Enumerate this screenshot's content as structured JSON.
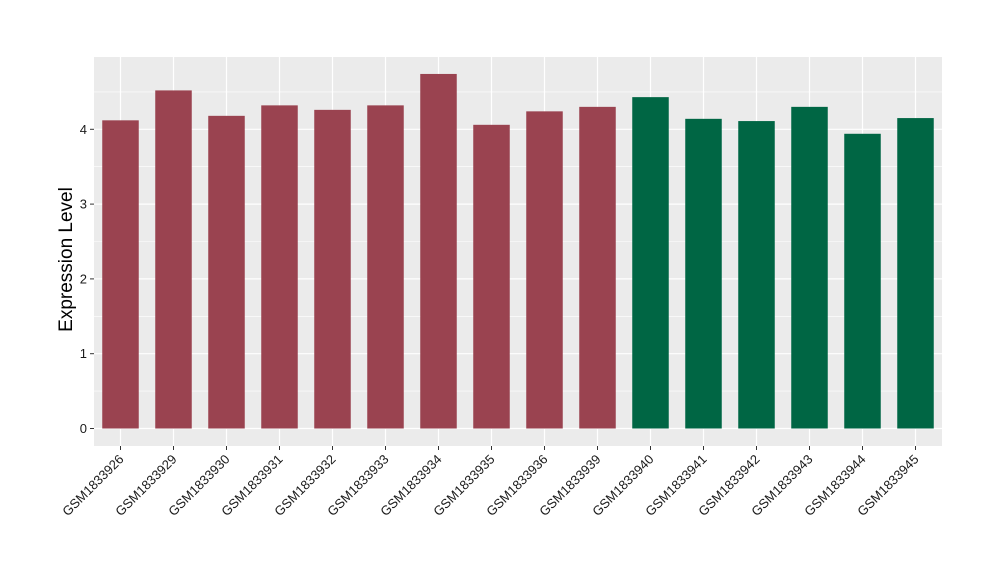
{
  "chart_data": {
    "type": "bar",
    "title": "",
    "xlabel": "",
    "ylabel": "Expression Level",
    "ylim": [
      0,
      5
    ],
    "yticks": [
      0,
      1,
      2,
      3,
      4
    ],
    "grid": true,
    "legend": "none",
    "categories": [
      "GSM1833926",
      "GSM1833929",
      "GSM1833930",
      "GSM1833931",
      "GSM1833932",
      "GSM1833933",
      "GSM1833934",
      "GSM1833935",
      "GSM1833936",
      "GSM1833939",
      "GSM1833940",
      "GSM1833941",
      "GSM1833942",
      "GSM1833943",
      "GSM1833944",
      "GSM1833945"
    ],
    "values": [
      4.12,
      4.52,
      4.18,
      4.32,
      4.26,
      4.32,
      4.74,
      4.06,
      4.24,
      4.3,
      4.43,
      4.14,
      4.11,
      4.3,
      3.94,
      4.15
    ],
    "groups": [
      0,
      0,
      0,
      0,
      0,
      0,
      0,
      0,
      0,
      0,
      1,
      1,
      1,
      1,
      1,
      1
    ],
    "group_colors": [
      "#9a4350",
      "#006644"
    ],
    "panel_color": "#ebebeb",
    "grid_color": "#ffffff"
  }
}
